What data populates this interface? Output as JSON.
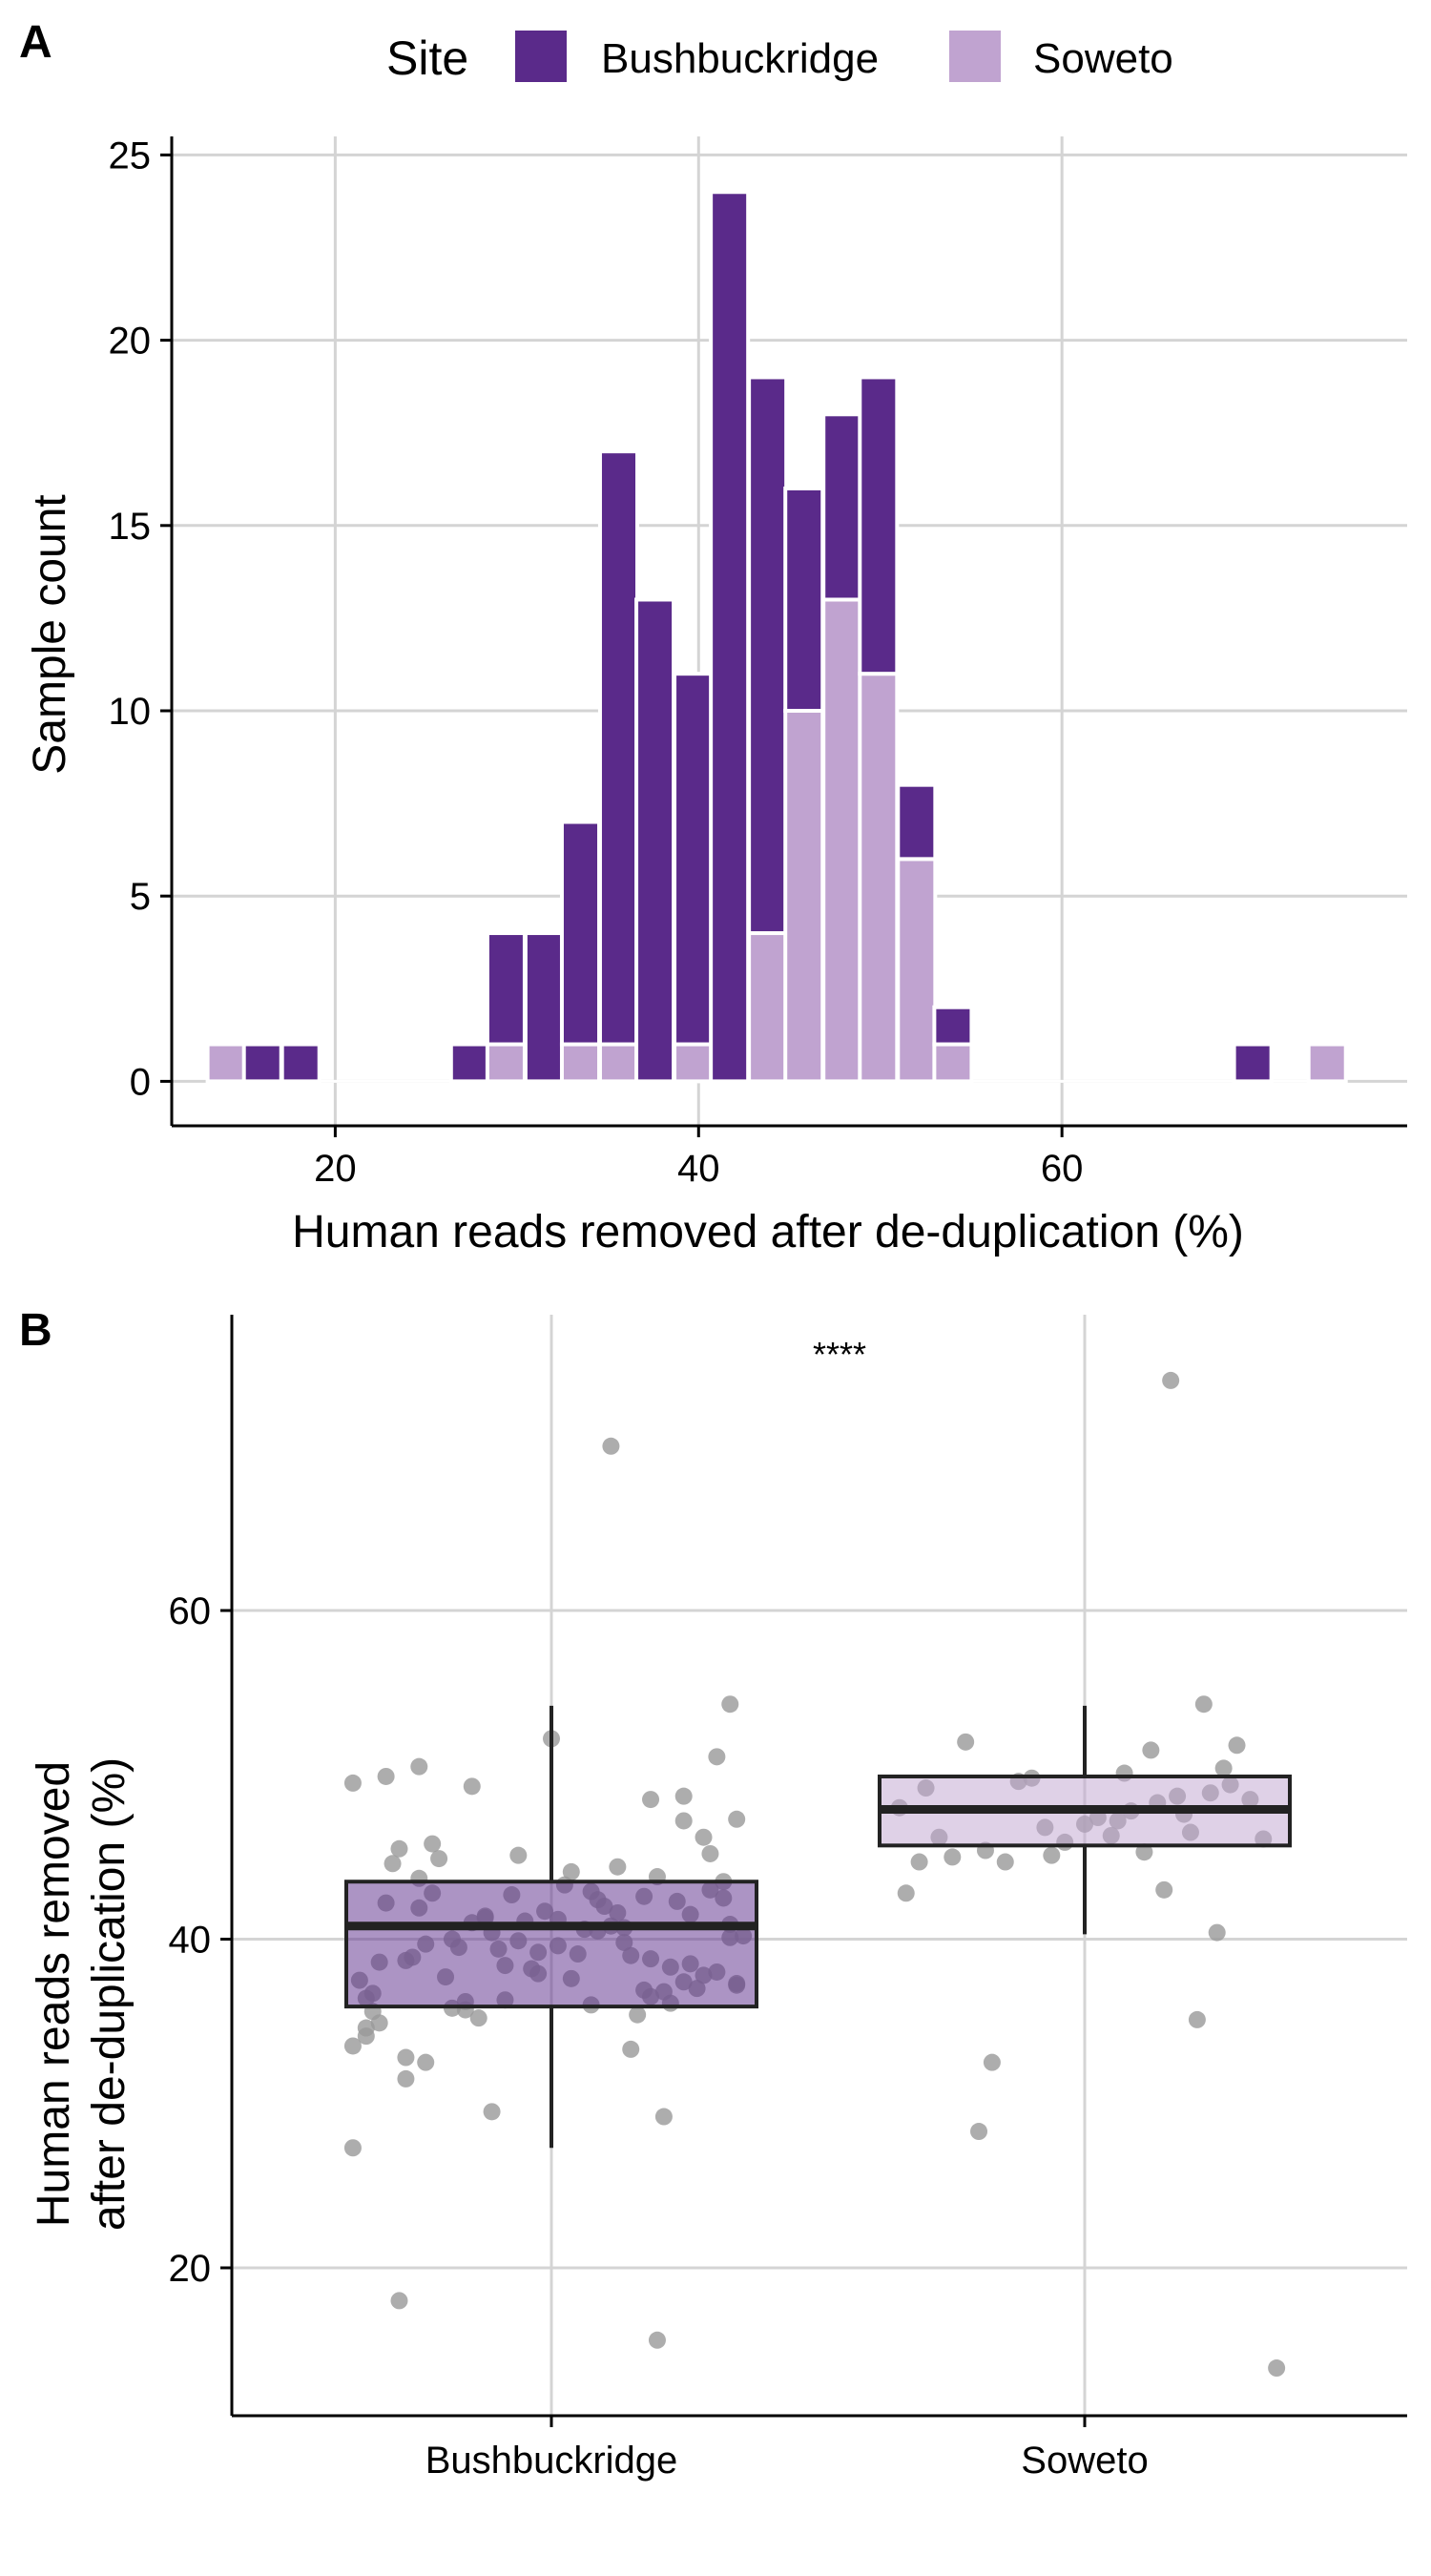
{
  "colors": {
    "bushbuckridge": "#5a2a8a",
    "soweto": "#c0a3d0",
    "grid": "#d4d4d4",
    "axis": "#000000",
    "points": "#999999",
    "box_outline": "#222222"
  },
  "legend": {
    "title": "Site",
    "items": [
      {
        "label": "Bushbuckridge",
        "color": "#5a2a8a"
      },
      {
        "label": "Soweto",
        "color": "#c0a3d0"
      }
    ],
    "placement": "top"
  },
  "chart_data": [
    {
      "panel": "A",
      "type": "bar",
      "stacked": true,
      "xlabel": "Human reads removed after de-duplication (%)",
      "ylabel": "Sample count",
      "xlim": [
        11,
        79
      ],
      "ylim": [
        -1.2,
        25.5
      ],
      "x_ticks": [
        20,
        40,
        60
      ],
      "y_ticks": [
        0,
        5,
        10,
        15,
        20,
        25
      ],
      "bin_width": 2.05,
      "grid": true,
      "x": [
        14.0,
        16.0,
        18.1,
        27.4,
        29.4,
        31.5,
        33.5,
        35.6,
        37.6,
        39.7,
        41.7,
        43.8,
        45.8,
        47.9,
        49.9,
        52.0,
        54.0,
        70.5,
        74.6
      ],
      "series": [
        {
          "name": "Soweto",
          "values": [
            1,
            0,
            0,
            0,
            1,
            0,
            1,
            1,
            0,
            1,
            0,
            4,
            10,
            13,
            11,
            6,
            1,
            0,
            1
          ]
        },
        {
          "name": "Bushbuckridge",
          "values": [
            0,
            1,
            1,
            1,
            3,
            4,
            6,
            16,
            13,
            10,
            24,
            15,
            6,
            5,
            8,
            2,
            1,
            1,
            0
          ]
        }
      ]
    },
    {
      "panel": "B",
      "type": "box",
      "xlabel": "",
      "ylabel_lines": [
        "Human reads removed",
        "after de-duplication (%)"
      ],
      "categories": [
        "Bushbuckridge",
        "Soweto"
      ],
      "ylim": [
        11,
        78
      ],
      "y_ticks": [
        20,
        40,
        60
      ],
      "grid": true,
      "annotation": "****",
      "boxes": [
        {
          "category": "Bushbuckridge",
          "q1": 35.9,
          "median": 40.8,
          "q3": 43.5,
          "whisker_low": 27.3,
          "whisker_high": 54.2,
          "fill": "#5a2a8a"
        },
        {
          "category": "Soweto",
          "q1": 45.7,
          "median": 47.9,
          "q3": 49.9,
          "whisker_low": 40.3,
          "whisker_high": 54.2,
          "fill": "#c0a3d0"
        }
      ],
      "points": [
        {
          "category": "Bushbuckridge",
          "offset": [
            -0.3,
            0.27,
            0.09,
            -0.25,
            -0.2,
            -0.23,
            -0.3,
            0.16,
            0.0,
            -0.12,
            0.25,
            0.28,
            0.15,
            -0.28,
            -0.19,
            -0.3,
            0.26,
            -0.09,
            -0.02,
            -0.27,
            0.06,
            0.2,
            -0.22,
            0.12,
            -0.05,
            0.17,
            0.23,
            -0.15,
            0.03,
            -0.26,
            0.1,
            -0.18,
            0.28,
            -0.08,
            0.14,
            -0.22,
            0.01,
            0.19,
            -0.29,
            0.07,
            -0.13,
            0.24,
            -0.03,
            0.11,
            -0.2,
            0.18,
            -0.06,
            0.27,
            -0.16,
            0.04,
            -0.24,
            0.21,
            -0.1,
            0.13,
            0.29,
            -0.27,
            0.08,
            -0.14,
            0.22,
            -0.01,
            0.16,
            -0.21,
            0.05,
            -0.28,
            0.26,
            -0.07,
            0.12,
            -0.17,
            0.2,
            -0.04,
            0.25,
            -0.11,
            0.09,
            -0.25,
            0.15,
            -0.19,
            0.02,
            0.23,
            -0.12,
            0.18,
            -0.23,
            0.06,
            -0.09,
            0.28,
            -0.02,
            0.14,
            -0.15,
            0.21,
            -0.26,
            0.1,
            -0.05,
            0.17,
            0.27,
            -0.18,
            0.03,
            -0.07,
            0.24,
            -0.2,
            0.11,
            0.15,
            -0.1,
            0.01,
            -0.28,
            0.2,
            -0.13,
            0.07,
            -0.22
          ],
          "values": [
            49.5,
            54.3,
            70.0,
            49.9,
            50.5,
            18.0,
            27.3,
            15.6,
            52.2,
            49.3,
            51.1,
            47.3,
            48.5,
            36.4,
            32.5,
            33.5,
            43.5,
            29.5,
            37.9,
            35.6,
            42.9,
            47.2,
            32.8,
            33.3,
            45.1,
            29.2,
            46.2,
            40.0,
            44.1,
            34.9,
            41.6,
            45.8,
            37.2,
            39.4,
            36.9,
            38.7,
            41.2,
            42.3,
            37.5,
            40.5,
            35.7,
            43.0,
            38.2,
            39.8,
            41.9,
            36.1,
            42.7,
            40.9,
            37.7,
            39.1,
            44.6,
            38.5,
            41.4,
            35.4,
            40.2,
            36.7,
            42.0,
            39.5,
            37.0,
            41.7,
            43.8,
            38.9,
            40.6,
            34.6,
            42.5,
            36.3,
            39.0,
            44.9,
            37.4,
            41.1,
            38.0,
            35.2,
            40.8,
            42.2,
            36.5,
            39.7,
            43.3,
            37.8,
            41.0,
            38.3,
            45.5,
            36.0,
            40.4,
            37.3,
            39.2,
            42.6,
            35.8,
            41.5,
            38.6,
            44.4,
            39.9,
            36.8,
            40.1,
            42.8,
            37.6,
            38.4,
            45.2,
            43.7,
            40.7,
            38.8,
            41.3,
            39.6,
            34.1,
            48.7,
            36.2,
            42.4,
            31.5
          ]
        },
        {
          "category": "Soweto",
          "offset": [
            0.13,
            0.29,
            -0.28,
            0.17,
            -0.14,
            -0.16,
            0.18,
            0.06,
            -0.27,
            0.2,
            -0.2,
            -0.25,
            0.1,
            -0.1,
            0.0,
            0.04,
            0.14,
            -0.05,
            0.09,
            0.23,
            -0.18,
            0.25,
            -0.08,
            0.02,
            0.12,
            0.16,
            -0.12,
            0.21,
            -0.22,
            0.07,
            -0.03,
            0.19,
            0.27,
            -0.24,
            0.05,
            -0.15,
            0.11,
            0.22,
            -0.06,
            0.15
          ],
          "values": [
            74.0,
            13.9,
            48.0,
            35.1,
            32.5,
            28.3,
            54.3,
            50.1,
            42.8,
            40.4,
            45.0,
            44.7,
            51.5,
            49.6,
            47.0,
            46.3,
            48.7,
            45.1,
            45.3,
            51.8,
            52.0,
            48.5,
            49.8,
            47.4,
            43.0,
            46.5,
            44.7,
            50.4,
            46.2,
            47.8,
            45.9,
            48.9,
            46.1,
            49.2,
            47.2,
            45.4,
            48.3,
            49.4,
            46.8,
            47.6
          ]
        }
      ]
    }
  ]
}
